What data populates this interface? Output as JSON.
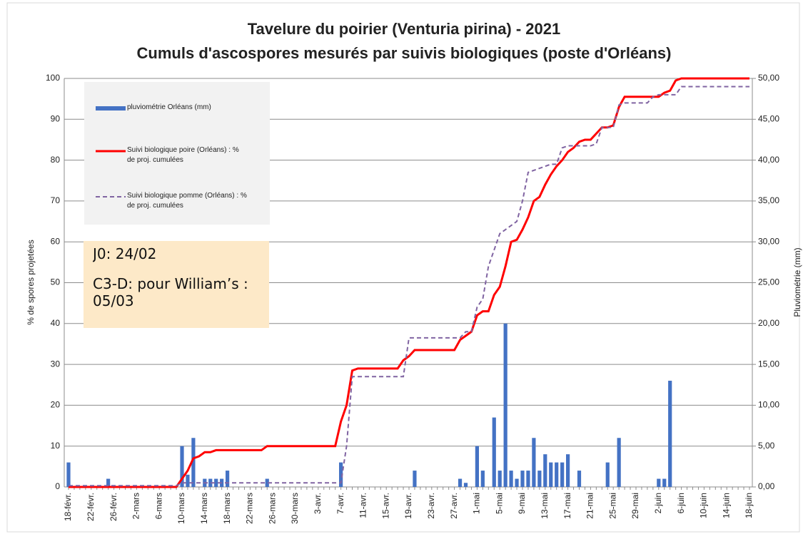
{
  "chart_data": {
    "type": "bar_line",
    "title": "Tavelure du poirier (Venturia pirina) - 2021",
    "subtitle": "Cumuls d'ascospores mesurés par suivis biologiques (poste d'Orléans)",
    "ylabel": "% de spores projetées",
    "y2label": "Pluviométrie (mm)",
    "categories": [
      "18-févr.",
      null,
      null,
      null,
      "22-févr.",
      null,
      null,
      null,
      "26-févr.",
      null,
      null,
      null,
      "2-mars",
      null,
      null,
      null,
      "6-mars",
      null,
      null,
      null,
      "10-mars",
      null,
      null,
      null,
      "14-mars",
      null,
      null,
      null,
      "18-mars",
      null,
      null,
      null,
      "22-mars",
      null,
      null,
      null,
      "26-mars",
      null,
      null,
      null,
      "30-mars",
      null,
      null,
      null,
      "3-avr.",
      null,
      null,
      null,
      "7-avr.",
      null,
      null,
      null,
      "11-avr.",
      null,
      null,
      null,
      "15-avr.",
      null,
      null,
      null,
      "19-avr.",
      null,
      null,
      null,
      "23-avr.",
      null,
      null,
      null,
      "27-avr.",
      null,
      null,
      null,
      "1-mai",
      null,
      null,
      null,
      "5-mai",
      null,
      null,
      null,
      "9-mai",
      null,
      null,
      null,
      "13-mai",
      null,
      null,
      null,
      "17-mai",
      null,
      null,
      null,
      "21-mai",
      null,
      null,
      null,
      "25-mai",
      null,
      null,
      null,
      "29-mai",
      null,
      null,
      null,
      "2-juin",
      null,
      null,
      null,
      "6-juin",
      null,
      null,
      null,
      "10-juin",
      null,
      null,
      null,
      "14-juin",
      null,
      null,
      null,
      "18-juin"
    ],
    "series": [
      {
        "name": "pluviométrie Orléans (mm)",
        "kind": "bar",
        "axis": "y2",
        "color": "#4472c4",
        "values": [
          3,
          0,
          0,
          0,
          0,
          0,
          0,
          1,
          0,
          0,
          0,
          0,
          0,
          0,
          0,
          0,
          0,
          0,
          0,
          0,
          5,
          1.5,
          6,
          0,
          1,
          1,
          1,
          1,
          2,
          0,
          0,
          0,
          0,
          0,
          0,
          1,
          0,
          0,
          0,
          0,
          0,
          0,
          0,
          0,
          0,
          0,
          0,
          0,
          3,
          0,
          0,
          0,
          0,
          0,
          0,
          0,
          0,
          0,
          0,
          0,
          0,
          2,
          0,
          0,
          0,
          0,
          0,
          0,
          0,
          1,
          0.5,
          0,
          5,
          2,
          0,
          8.5,
          2,
          20,
          2,
          1,
          2,
          2,
          6,
          2,
          4,
          3,
          3,
          3,
          4,
          0,
          2,
          0,
          0,
          0,
          0,
          3,
          0,
          6,
          0,
          0,
          0,
          0,
          0,
          0,
          1,
          1,
          13,
          0,
          0,
          0,
          0,
          0,
          0,
          0,
          0,
          0,
          0,
          0,
          0,
          0,
          0
        ]
      },
      {
        "name": "Suivi biologique poire (Orléans) : % de proj. cumulées",
        "kind": "line",
        "color": "#ff0000",
        "dash": false,
        "values": [
          0,
          0,
          0,
          0,
          0,
          0,
          0,
          0,
          0,
          0,
          0,
          0,
          0,
          0,
          0,
          0,
          0,
          0,
          0,
          0,
          2,
          4,
          7,
          7.5,
          8.5,
          8.5,
          9,
          9,
          9,
          9,
          9,
          9,
          9,
          9,
          9,
          10,
          10,
          10,
          10,
          10,
          10,
          10,
          10,
          10,
          10,
          10,
          10,
          10,
          16,
          20,
          28.5,
          29,
          29,
          29,
          29,
          29,
          29,
          29,
          29,
          31,
          32,
          33.5,
          33.5,
          33.5,
          33.5,
          33.5,
          33.5,
          33.5,
          33.5,
          36,
          37,
          38,
          42,
          43,
          43,
          47,
          49,
          54,
          60,
          60.5,
          63,
          66,
          70,
          71,
          74,
          76.5,
          78.5,
          80,
          82,
          83,
          84.5,
          85,
          85,
          86.5,
          88,
          88,
          88.5,
          93,
          95.5,
          95.5,
          95.5,
          95.5,
          95.5,
          95.5,
          95.5,
          96.5,
          97,
          99.5,
          100,
          100,
          100,
          100,
          100,
          100,
          100,
          100,
          100,
          100,
          100,
          100,
          100
        ]
      },
      {
        "name": "Suivi biologique pomme (Orléans) : % de proj. cumulées",
        "kind": "line",
        "color": "#8064a2",
        "dash": true,
        "values": [
          0.3,
          0.3,
          0.3,
          0.3,
          0.3,
          0.3,
          0.3,
          0.3,
          0.3,
          0.3,
          0.3,
          0.3,
          0.3,
          0.3,
          0.3,
          0.3,
          0.3,
          0.3,
          0.3,
          0.3,
          1,
          1,
          1,
          1,
          1,
          1,
          1,
          1,
          1,
          1,
          1,
          1,
          1,
          1,
          1,
          1,
          1,
          1,
          1,
          1,
          1,
          1,
          1,
          1,
          1,
          1,
          1,
          1,
          1,
          10,
          27,
          27,
          27,
          27,
          27,
          27,
          27,
          27,
          27,
          27,
          36.5,
          36.5,
          36.5,
          36.5,
          36.5,
          36.5,
          36.5,
          36.5,
          36.5,
          36.5,
          38,
          38,
          44,
          46,
          54,
          58,
          62,
          63,
          64,
          65,
          70,
          77,
          77.5,
          78,
          78.5,
          79,
          79,
          83,
          83.5,
          83.5,
          83.5,
          83.5,
          83.5,
          84,
          88,
          88,
          88,
          93.5,
          94,
          94,
          94,
          94,
          94,
          95.5,
          96,
          96,
          96,
          96,
          98,
          98,
          98,
          98,
          98,
          98,
          98,
          98,
          98,
          98,
          98,
          98,
          98
        ]
      }
    ],
    "ylim": [
      0,
      100
    ],
    "yticks": [
      0,
      10,
      20,
      30,
      40,
      50,
      60,
      70,
      80,
      90,
      100
    ],
    "y2lim": [
      0,
      50
    ],
    "y2ticks": [
      {
        "value": 0,
        "label": "0,00"
      },
      {
        "value": 5,
        "label": "5,00"
      },
      {
        "value": 10,
        "label": "10,00"
      },
      {
        "value": 15,
        "label": "15,00"
      },
      {
        "value": 20,
        "label": "20,00"
      },
      {
        "value": 25,
        "label": "25,00"
      },
      {
        "value": 30,
        "label": "30,00"
      },
      {
        "value": 35,
        "label": "35,00"
      },
      {
        "value": 40,
        "label": "40,00"
      },
      {
        "value": 45,
        "label": "45,00"
      },
      {
        "value": 50,
        "label": "50,00"
      }
    ],
    "grid": true,
    "legend": "top-left",
    "annotations": [
      "J0: 24/02",
      "C3-D: pour William’s : 05/03"
    ]
  }
}
